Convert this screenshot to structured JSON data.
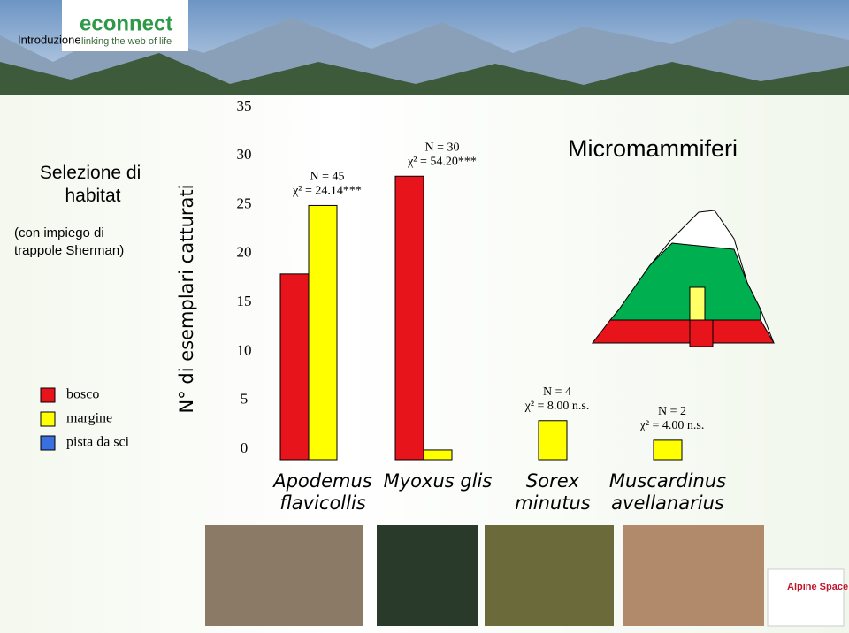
{
  "header": {
    "section": "Introduzione",
    "logo": "econnect",
    "tagline": "linking the web of life"
  },
  "sidebar": {
    "title": "Selezione di habitat",
    "note": "(con impiego di trappole Sherman)"
  },
  "chart_data": {
    "type": "bar",
    "title": "Micromammiferi",
    "y_label": "N° di esemplari catturati",
    "categories": [
      "Apodemus flavicollis",
      "Myoxus glis",
      "Sorex minutus",
      "Muscardinus avellanarius"
    ],
    "series": [
      {
        "name": "bosco",
        "color": "#e8141c",
        "values": [
          19,
          29,
          0,
          0
        ]
      },
      {
        "name": "margine",
        "color": "#ffff00",
        "values": [
          26,
          1,
          4,
          2
        ]
      },
      {
        "name": "pista da sci",
        "color": "#3a6fe0",
        "values": [
          0,
          0,
          0,
          0
        ]
      }
    ],
    "annotations": [
      {
        "n": "N = 45",
        "chi": "χ² = 24.14***"
      },
      {
        "n": "N = 30",
        "chi": "χ² = 54.20***"
      },
      {
        "n": "N = 4",
        "chi": "χ² = 8.00 n.s."
      },
      {
        "n": "N = 2",
        "chi": "χ² = 4.00 n.s."
      }
    ],
    "ylim": [
      0,
      35
    ],
    "yticks": [
      0,
      5,
      10,
      15,
      20,
      25,
      30,
      35
    ],
    "grid": false
  },
  "footer": {
    "logo": "Alpine Space"
  }
}
